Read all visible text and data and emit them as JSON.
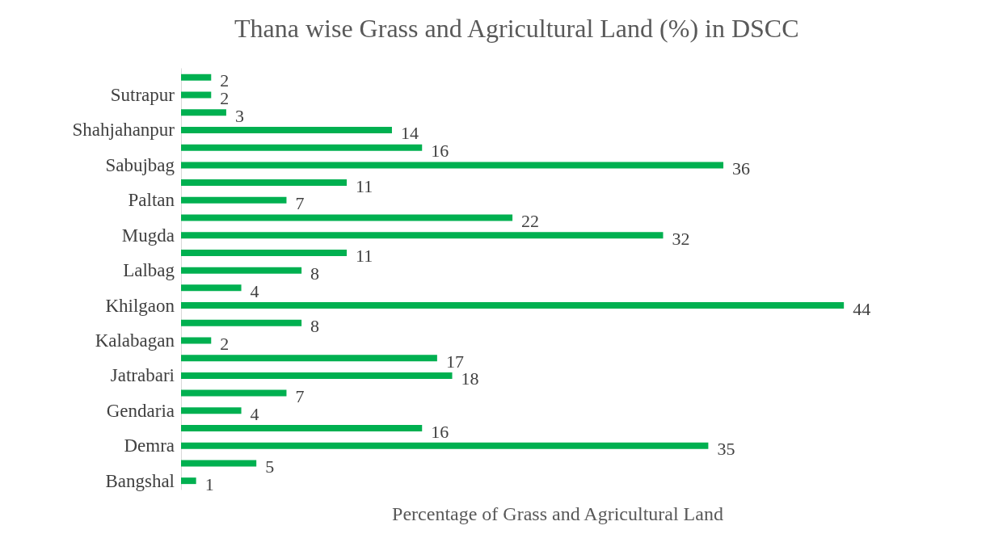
{
  "chart_data": {
    "type": "bar",
    "orientation": "horizontal",
    "title": "Thana wise Grass and Agricultural Land (%) in DSCC",
    "xlabel": "Percentage of Grass and Agricultural Land",
    "categories": [
      null,
      "Sutrapur",
      null,
      "Shahjahanpur",
      null,
      "Sabujbag",
      null,
      "Paltan",
      null,
      "Mugda",
      null,
      "Lalbag",
      null,
      "Khilgaon",
      null,
      "Kalabagan",
      null,
      "Jatrabari",
      null,
      "Gendaria",
      null,
      "Demra",
      null,
      "Bangshal"
    ],
    "values": [
      2,
      2,
      3,
      14,
      16,
      36,
      11,
      7,
      22,
      32,
      11,
      8,
      4,
      44,
      8,
      2,
      17,
      18,
      7,
      4,
      16,
      35,
      5,
      1
    ],
    "color": "#00b050",
    "data_labels": true,
    "tick_labels": "y"
  }
}
